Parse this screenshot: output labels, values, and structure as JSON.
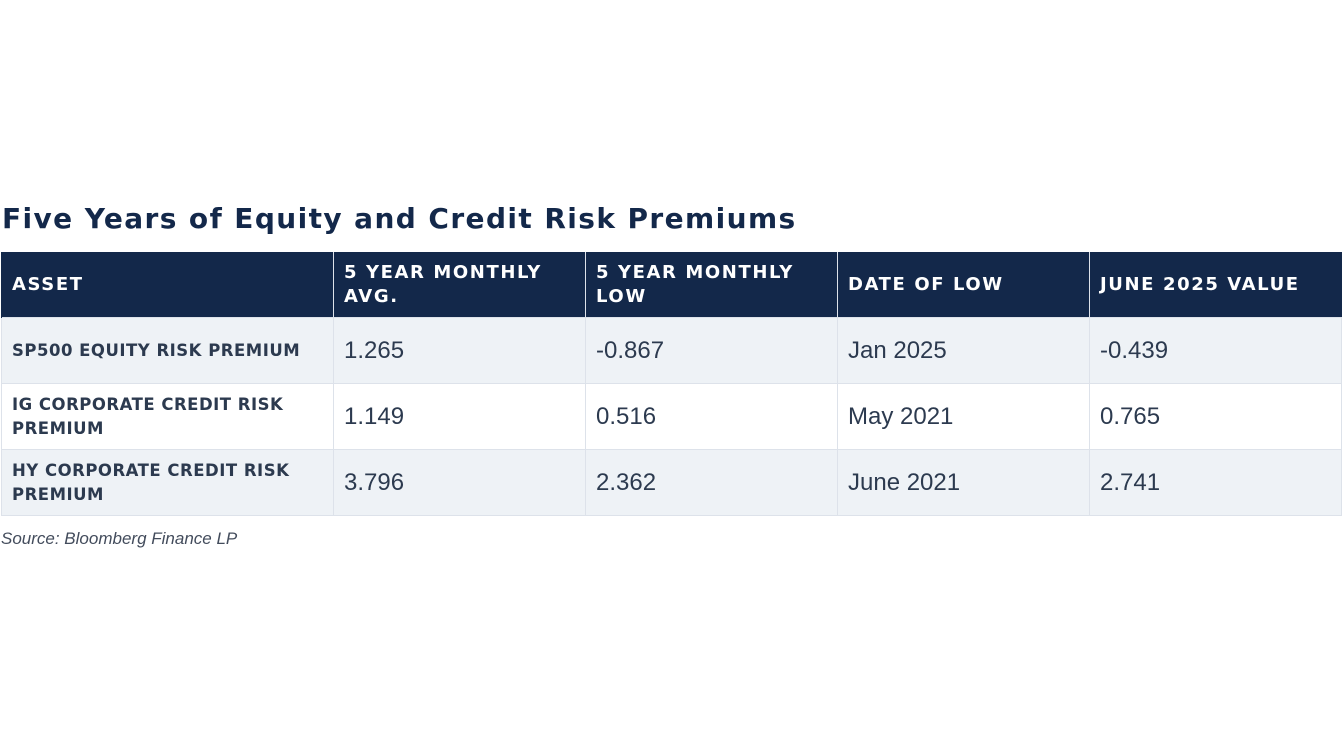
{
  "chart_data": {
    "type": "table",
    "title": "Five Years of Equity and Credit Risk Premiums",
    "columns": [
      "ASSET",
      "5 YEAR MONTHLY AVG.",
      "5 YEAR MONTHLY LOW",
      "DATE OF LOW",
      "JUNE 2025 VALUE"
    ],
    "rows": [
      {
        "asset": "SP500 EQUITY RISK PREMIUM",
        "avg": "1.265",
        "low": "-0.867",
        "date_of_low": "Jan 2025",
        "june_2025": "-0.439"
      },
      {
        "asset": "IG CORPORATE CREDIT RISK PREMIUM",
        "avg": "1.149",
        "low": "0.516",
        "date_of_low": "May 2021",
        "june_2025": "0.765"
      },
      {
        "asset": "HY CORPORATE CREDIT RISK PREMIUM",
        "avg": "3.796",
        "low": "2.362",
        "date_of_low": "June 2021",
        "june_2025": "2.741"
      }
    ],
    "source": "Source: Bloomberg Finance LP"
  },
  "colors": {
    "header_background": "#13284a",
    "header_text": "#ffffff",
    "title_text": "#13284a",
    "row_stripe": "#eef2f6",
    "grid_line": "#dde2ea"
  }
}
